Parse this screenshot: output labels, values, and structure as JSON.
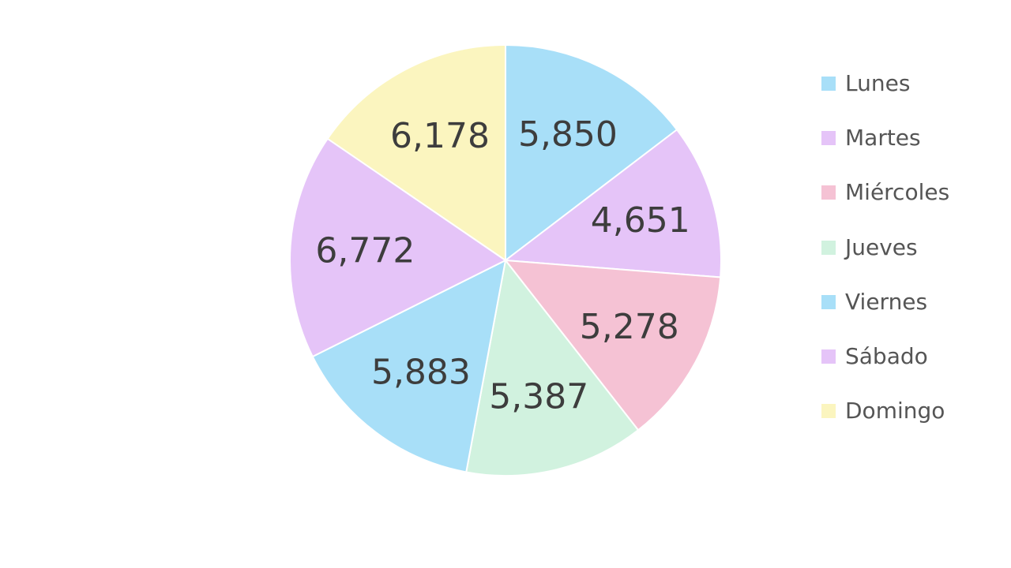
{
  "chart_data": {
    "type": "pie",
    "categories": [
      "Lunes",
      "Martes",
      "Miércoles",
      "Jueves",
      "Viernes",
      "Sábado",
      "Domingo"
    ],
    "values": [
      5850,
      4651,
      5278,
      5387,
      5883,
      6772,
      6178
    ],
    "value_labels": [
      "5,850",
      "4,651",
      "5,278",
      "5,387",
      "5,883",
      "6,772",
      "6,178"
    ],
    "colors": [
      "#a8dff8",
      "#e5c4f8",
      "#f5c2d4",
      "#d1f2df",
      "#a8dff8",
      "#e5c4f8",
      "#fbf5bf"
    ],
    "start_angle": "12 o'clock",
    "direction": "clockwise",
    "legend_position": "right",
    "title": ""
  }
}
